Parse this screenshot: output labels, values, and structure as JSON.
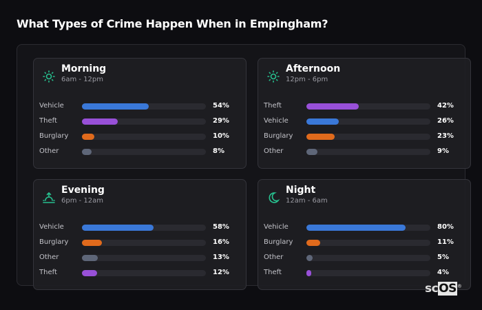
{
  "title": "What Types of Crime Happen When in Empingham?",
  "colors": {
    "Vehicle": "#3a78d8",
    "Theft": "#9850d8",
    "Burglary": "#e06a1c",
    "Other": "#5e6678",
    "accent": "#27c08f"
  },
  "cards": [
    {
      "name": "Morning",
      "range": "6am - 12pm",
      "icon": "sun-icon",
      "rows": [
        {
          "label": "Vehicle",
          "value": 54,
          "text": "54%"
        },
        {
          "label": "Theft",
          "value": 29,
          "text": "29%"
        },
        {
          "label": "Burglary",
          "value": 10,
          "text": "10%"
        },
        {
          "label": "Other",
          "value": 8,
          "text": "8%"
        }
      ]
    },
    {
      "name": "Afternoon",
      "range": "12pm - 6pm",
      "icon": "sun-icon",
      "rows": [
        {
          "label": "Theft",
          "value": 42,
          "text": "42%"
        },
        {
          "label": "Vehicle",
          "value": 26,
          "text": "26%"
        },
        {
          "label": "Burglary",
          "value": 23,
          "text": "23%"
        },
        {
          "label": "Other",
          "value": 9,
          "text": "9%"
        }
      ]
    },
    {
      "name": "Evening",
      "range": "6pm - 12am",
      "icon": "sunset-icon",
      "rows": [
        {
          "label": "Vehicle",
          "value": 58,
          "text": "58%"
        },
        {
          "label": "Burglary",
          "value": 16,
          "text": "16%"
        },
        {
          "label": "Other",
          "value": 13,
          "text": "13%"
        },
        {
          "label": "Theft",
          "value": 12,
          "text": "12%"
        }
      ]
    },
    {
      "name": "Night",
      "range": "12am - 6am",
      "icon": "moon-icon",
      "rows": [
        {
          "label": "Vehicle",
          "value": 80,
          "text": "80%"
        },
        {
          "label": "Burglary",
          "value": 11,
          "text": "11%"
        },
        {
          "label": "Other",
          "value": 5,
          "text": "5%"
        },
        {
          "label": "Theft",
          "value": 4,
          "text": "4%"
        }
      ]
    }
  ],
  "logo": "scOS"
}
